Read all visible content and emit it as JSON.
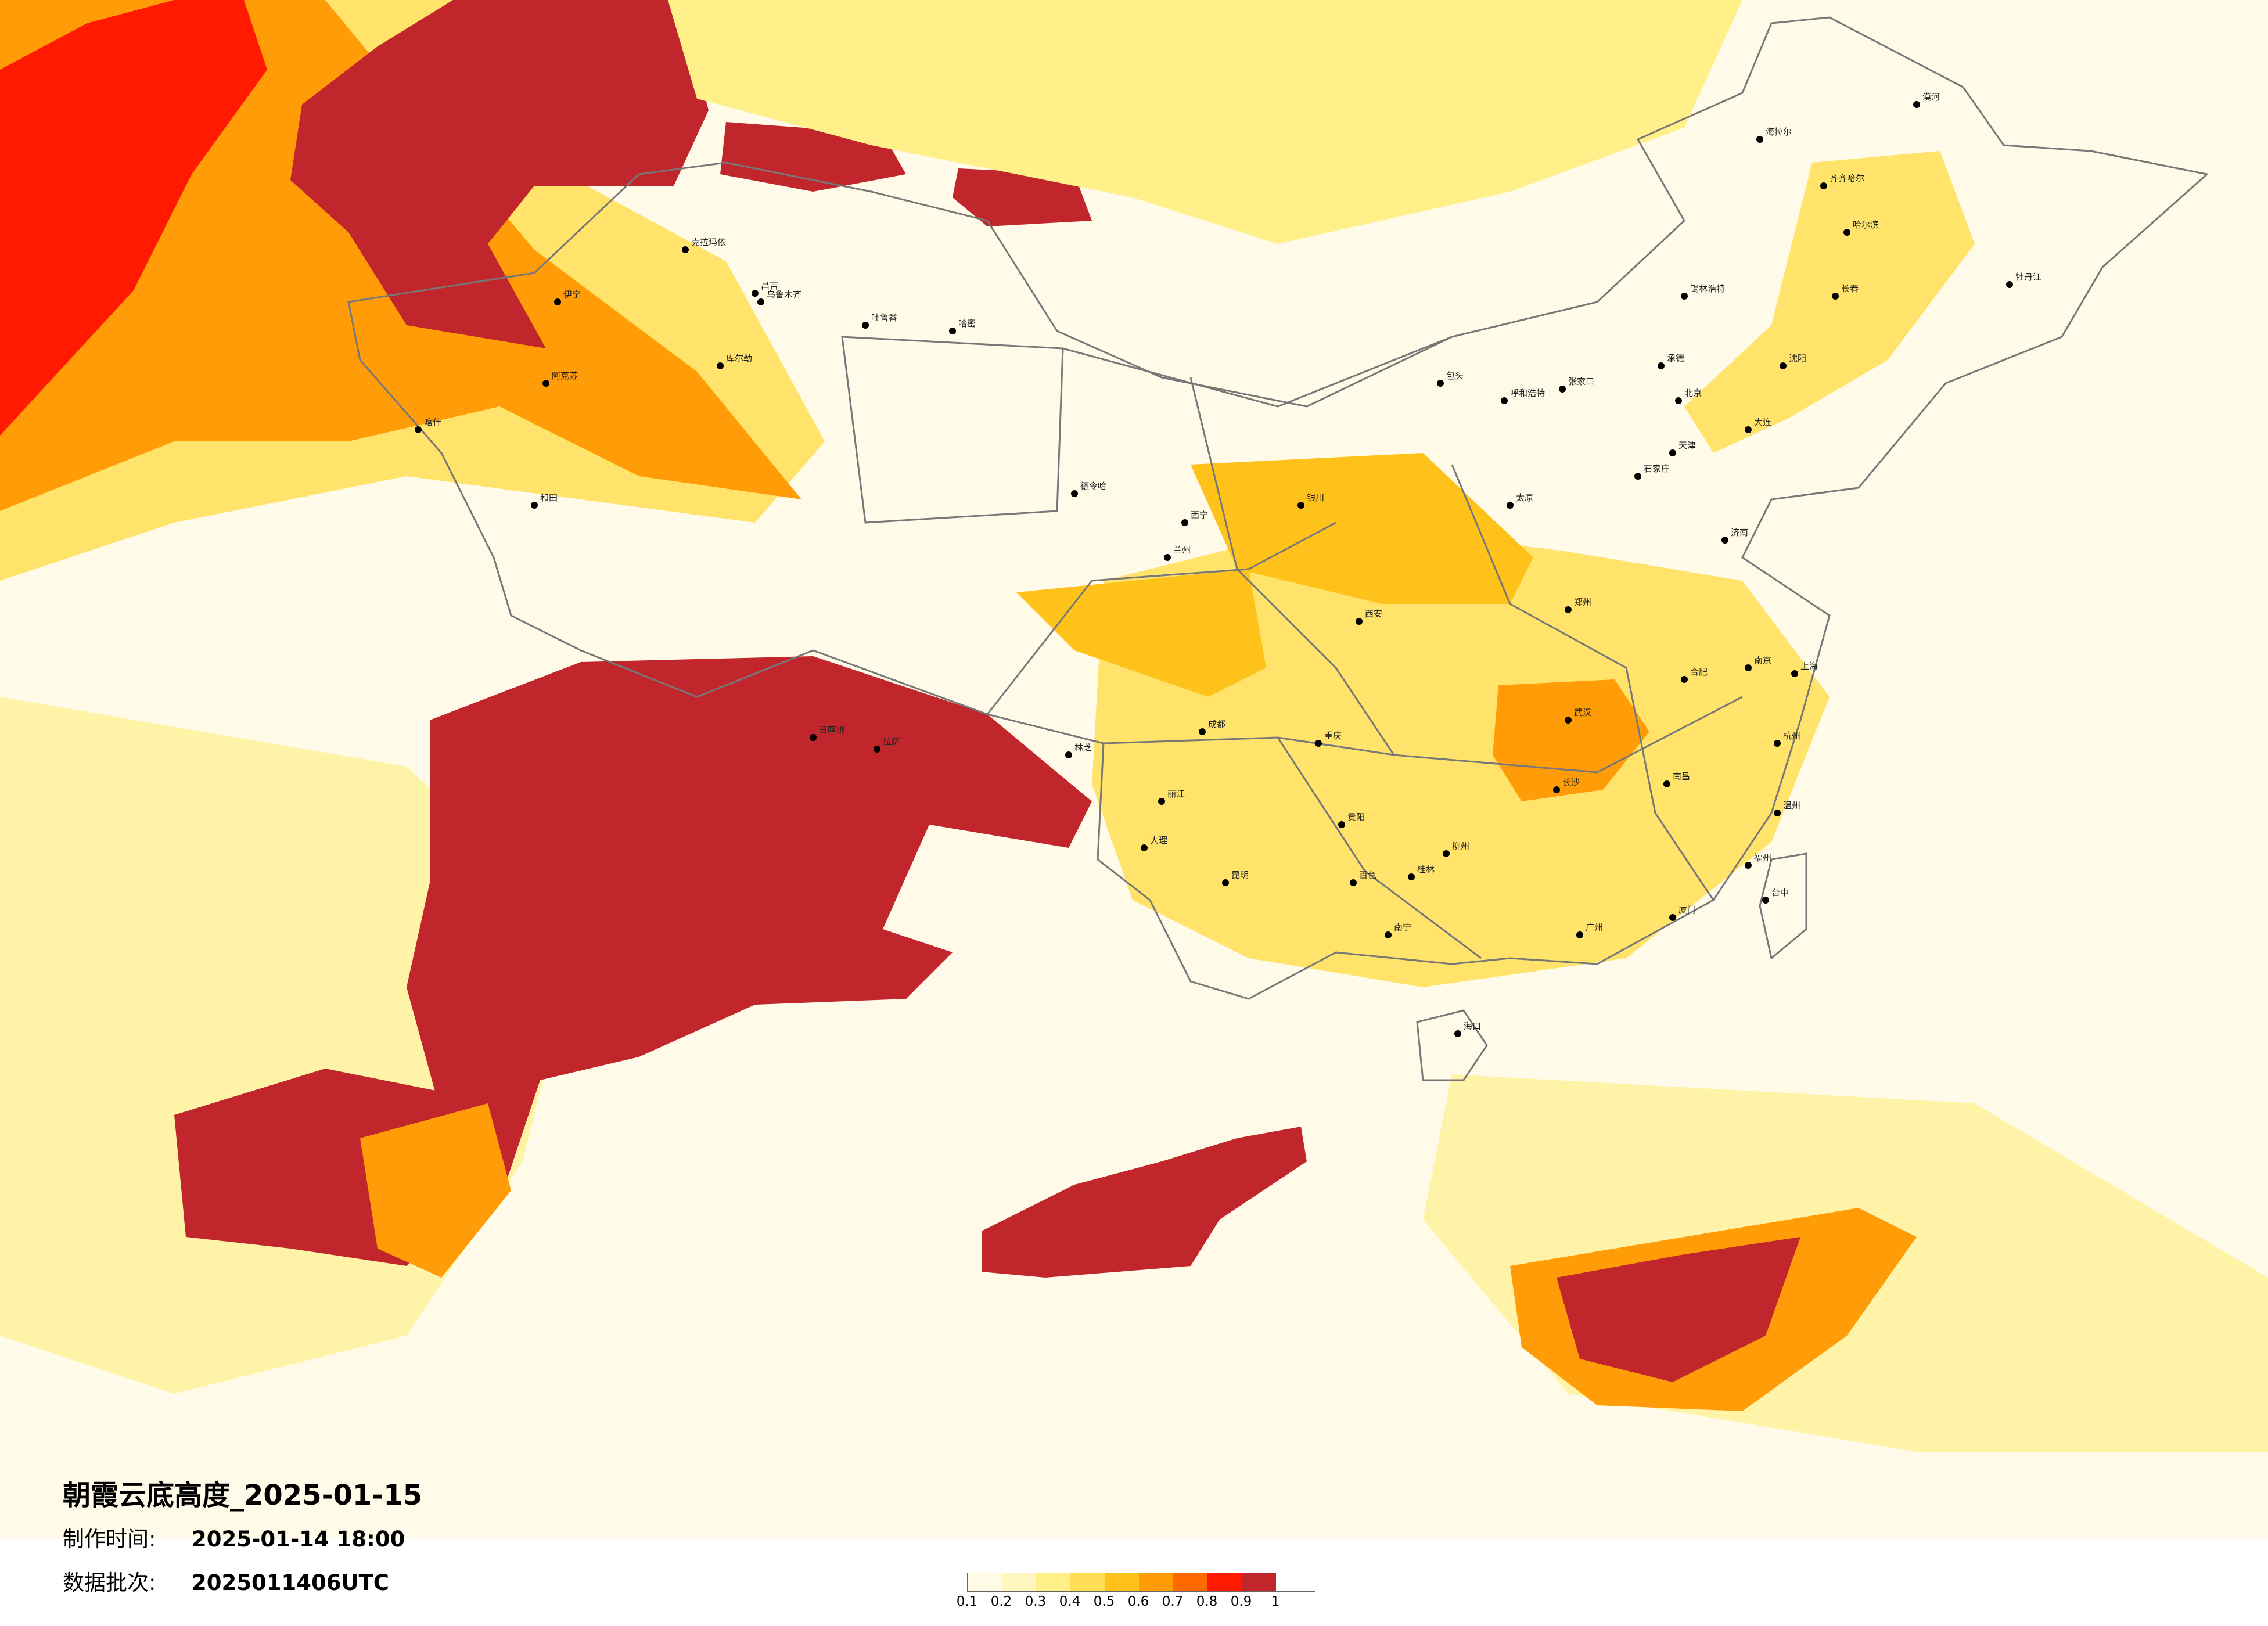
{
  "title": "朝霞云底高度_2025-01-15",
  "made_time": {
    "label": "制作时间:",
    "value": "2025-01-14 18:00"
  },
  "data_batch": {
    "label": "数据批次:",
    "value": "2025011406UTC"
  },
  "legend": {
    "colors": [
      "#fffbe6",
      "#fff6c0",
      "#fff08a",
      "#ffdd55",
      "#ffc21a",
      "#ff9c08",
      "#ff6a00",
      "#ff1a00",
      "#c1262c"
    ],
    "ticks": [
      "0.1",
      "0.2",
      "0.3",
      "0.4",
      "0.5",
      "0.6",
      "0.7",
      "0.8",
      "0.9",
      "1"
    ]
  },
  "map": {
    "background_color": "#fffbe8",
    "border_color": "#777777",
    "city_marker_color": "#000000",
    "city_labels": [
      "克拉玛依",
      "乌鲁木齐",
      "吐鲁番",
      "哈密",
      "库尔勒",
      "阿克苏",
      "喀什",
      "和田",
      "伊宁",
      "昌吉",
      "德令哈",
      "西宁",
      "兰州",
      "银川",
      "呼和浩特",
      "包头",
      "太原",
      "石家庄",
      "北京",
      "天津",
      "济南",
      "郑州",
      "西安",
      "成都",
      "重庆",
      "贵阳",
      "昆明",
      "南宁",
      "长沙",
      "武汉",
      "南昌",
      "合肥",
      "南京",
      "上海",
      "杭州",
      "福州",
      "广州",
      "海口",
      "台中",
      "哈尔滨",
      "长春",
      "沈阳",
      "大连",
      "齐齐哈尔",
      "海拉尔",
      "拉萨",
      "日喀则",
      "林芝",
      "丽江",
      "大理",
      "百色",
      "桂林",
      "柳州",
      "温州",
      "厦门",
      "漠河",
      "牡丹江",
      "锡林浩特",
      "张家口",
      "承德"
    ]
  }
}
